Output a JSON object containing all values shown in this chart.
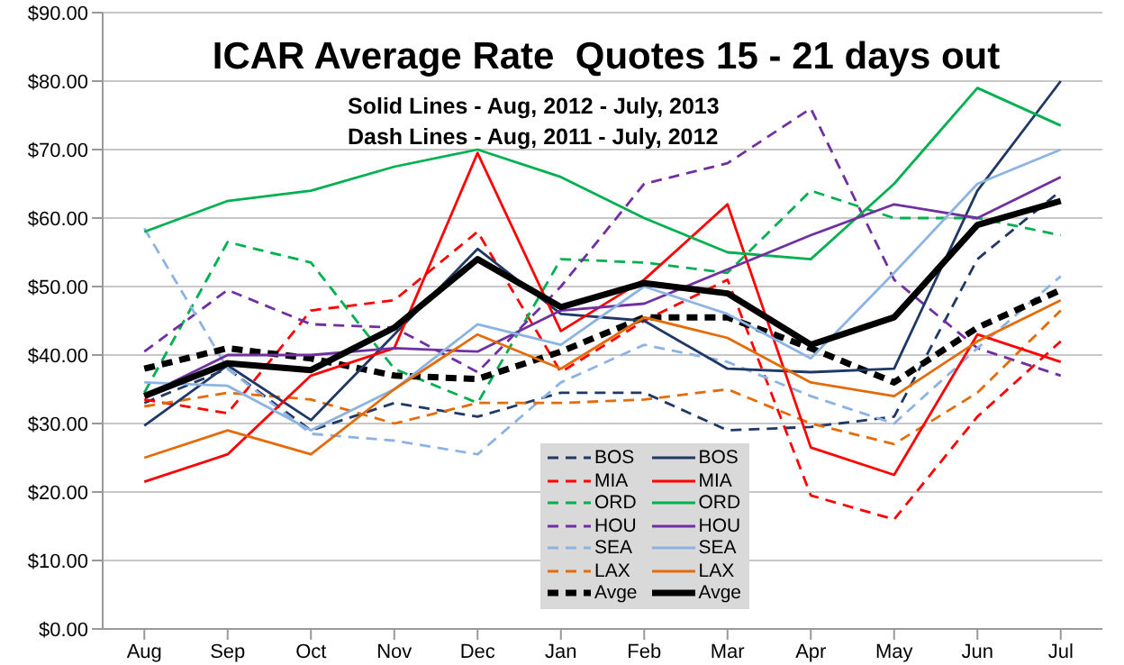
{
  "chart_data": {
    "type": "line",
    "title": "ICAR Average Rate  Quotes 15 - 21 days out",
    "annotations": [
      "Solid Lines - Aug, 2012 - July, 2013",
      "Dash Lines - Aug, 2011 - July, 2012"
    ],
    "categories": [
      "Aug",
      "Sep",
      "Oct",
      "Nov",
      "Dec",
      "Jan",
      "Feb",
      "Mar",
      "Apr",
      "May",
      "Jun",
      "Jul"
    ],
    "ylim": [
      0,
      90
    ],
    "yticks": [
      {
        "value": 0,
        "label": "$0.00"
      },
      {
        "value": 10,
        "label": "$10.00"
      },
      {
        "value": 20,
        "label": "$20.00"
      },
      {
        "value": 30,
        "label": "$30.00"
      },
      {
        "value": 40,
        "label": "$40.00"
      },
      {
        "value": 50,
        "label": "$50.00"
      },
      {
        "value": 60,
        "label": "$60.00"
      },
      {
        "value": 70,
        "label": "$70.00"
      },
      {
        "value": 80,
        "label": "$80.00"
      },
      {
        "value": 90,
        "label": "$90.00"
      }
    ],
    "grid": "y",
    "legend": "bottom",
    "marker": "none",
    "series": [
      {
        "name": "BOS",
        "color": "#1f3864",
        "line_style": "dashed",
        "values": [
          33,
          38,
          29,
          33,
          31,
          34.5,
          34.5,
          29,
          29.5,
          31,
          54,
          64
        ]
      },
      {
        "name": "MIA",
        "color": "#ff0000",
        "line_style": "dashed",
        "values": [
          33.5,
          31.5,
          46.5,
          48,
          58,
          37.5,
          45,
          51,
          19.5,
          16,
          31,
          42
        ]
      },
      {
        "name": "ORD",
        "color": "#00b050",
        "line_style": "dashed",
        "values": [
          34.5,
          56.5,
          53.5,
          38,
          33,
          54,
          53.5,
          52,
          64,
          60,
          60,
          57.5
        ]
      },
      {
        "name": "HOU",
        "color": "#7030a0",
        "line_style": "dashed",
        "values": [
          40.5,
          49.5,
          44.5,
          44,
          37.5,
          50,
          65,
          68,
          76,
          51,
          41,
          37
        ]
      },
      {
        "name": "SEA",
        "color": "#8db3e2",
        "line_style": "dashed",
        "values": [
          58.5,
          38,
          28.5,
          27.5,
          25.5,
          36,
          41.5,
          39,
          34,
          30,
          41,
          51.5
        ]
      },
      {
        "name": "LAX",
        "color": "#e36c09",
        "line_style": "dashed",
        "values": [
          32.5,
          34.5,
          33.5,
          30,
          33,
          33,
          33.5,
          35,
          30,
          27,
          34.5,
          46.5
        ]
      },
      {
        "name": "Avge",
        "color": "#000000",
        "line_style": "dashed",
        "values": [
          38,
          41,
          39.5,
          37,
          36.5,
          40.5,
          45.5,
          45.5,
          41,
          36,
          44,
          49.5
        ]
      },
      {
        "name": "BOS",
        "color": "#1f3864",
        "line_style": "solid",
        "values": [
          29.7,
          38.5,
          30.5,
          43,
          55.5,
          46,
          45,
          38,
          37.5,
          38,
          64,
          80
        ]
      },
      {
        "name": "MIA",
        "color": "#ff0000",
        "line_style": "solid",
        "values": [
          21.5,
          25.5,
          37,
          41,
          69.5,
          43.5,
          51,
          62,
          26.5,
          22.5,
          43,
          39
        ]
      },
      {
        "name": "ORD",
        "color": "#00b050",
        "line_style": "solid",
        "values": [
          58,
          62.5,
          64,
          67.5,
          70,
          66,
          60,
          55,
          54,
          65,
          79,
          73.5
        ]
      },
      {
        "name": "HOU",
        "color": "#7030a0",
        "line_style": "solid",
        "values": [
          34,
          40,
          40,
          41,
          40.5,
          46.5,
          47.5,
          52.5,
          57.5,
          62,
          60,
          66
        ]
      },
      {
        "name": "SEA",
        "color": "#8db3e2",
        "line_style": "solid",
        "values": [
          36,
          35.5,
          29,
          35,
          44.5,
          41.5,
          50,
          46,
          39.5,
          52,
          65,
          70
        ]
      },
      {
        "name": "LAX",
        "color": "#e36c09",
        "line_style": "solid",
        "values": [
          25,
          29,
          25.5,
          35,
          43,
          38,
          45.5,
          42.5,
          36,
          34,
          42,
          48
        ]
      },
      {
        "name": "Avge",
        "color": "#000000",
        "line_style": "solid",
        "values": [
          34,
          38.8,
          37.8,
          44,
          54,
          47,
          50.5,
          49,
          41.5,
          45.5,
          59,
          62.5
        ]
      }
    ]
  }
}
